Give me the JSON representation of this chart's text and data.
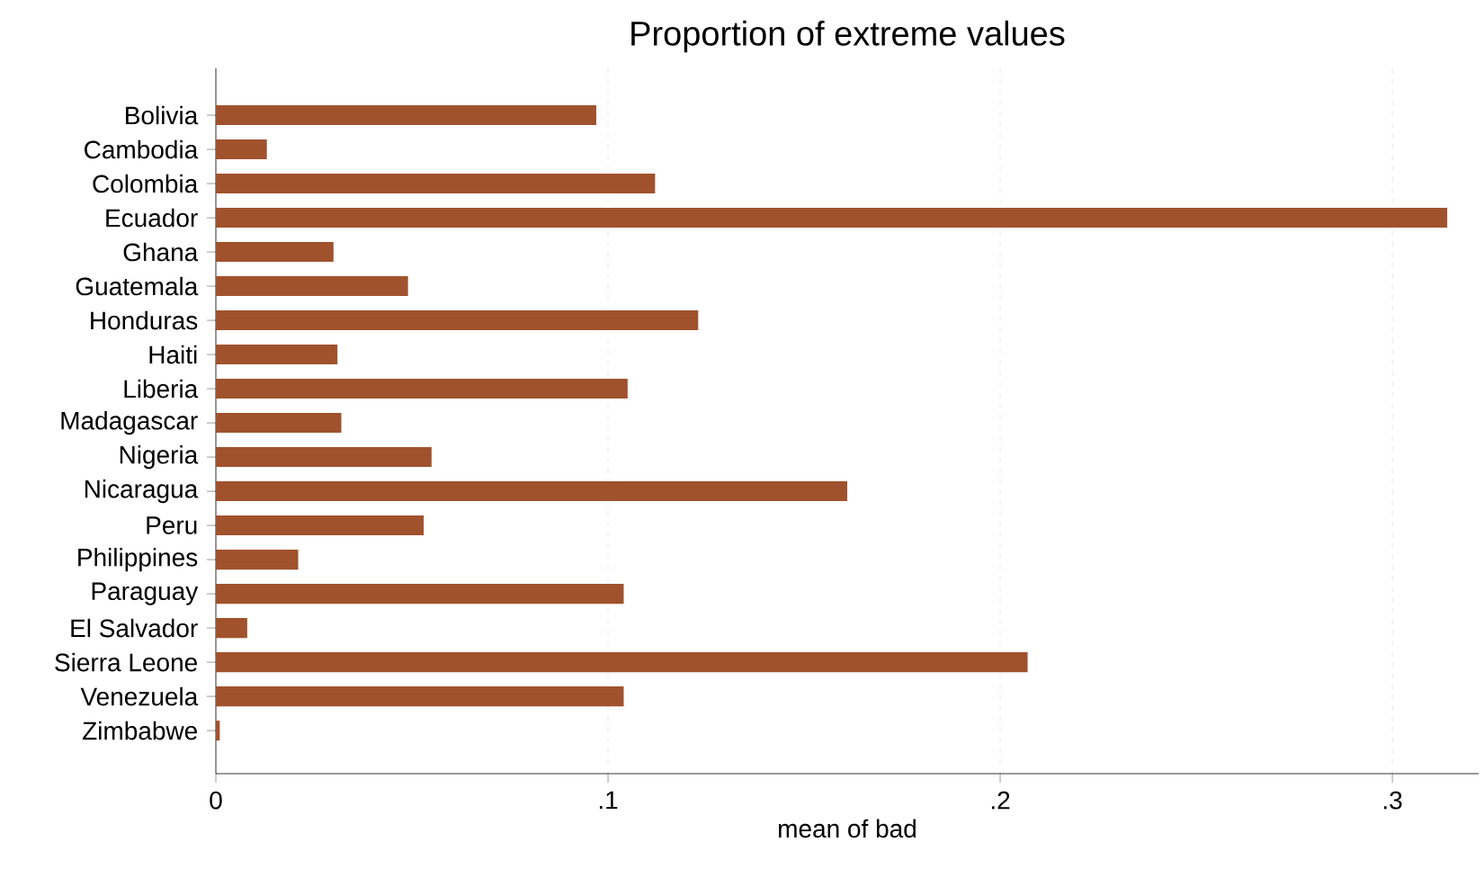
{
  "chart_data": {
    "type": "bar",
    "orientation": "horizontal",
    "title": "Proportion of extreme values",
    "xlabel": "mean of bad",
    "categories": [
      "Bolivia",
      "Cambodia",
      "Colombia",
      "Ecuador",
      "Ghana",
      "Guatemala",
      "Honduras",
      "Haiti",
      "Liberia",
      "Madagascar",
      "Nigeria",
      "Nicaragua",
      "Peru",
      "Philippines",
      "Paraguay",
      "El Salvador",
      "Sierra Leone",
      "Venezuela",
      "Zimbabwe"
    ],
    "values": [
      0.097,
      0.013,
      0.112,
      0.314,
      0.03,
      0.049,
      0.123,
      0.031,
      0.105,
      0.032,
      0.055,
      0.161,
      0.053,
      0.021,
      0.104,
      0.008,
      0.207,
      0.104,
      0.001
    ],
    "color": "#a0522d",
    "xlim": [
      0,
      0.322
    ],
    "xticks": [
      0,
      {
        "value": 0.1,
        "label": ".1"
      },
      {
        "value": 0.2,
        "label": ".2"
      },
      {
        "value": 0.3,
        "label": ".3"
      }
    ],
    "grid": "x"
  }
}
